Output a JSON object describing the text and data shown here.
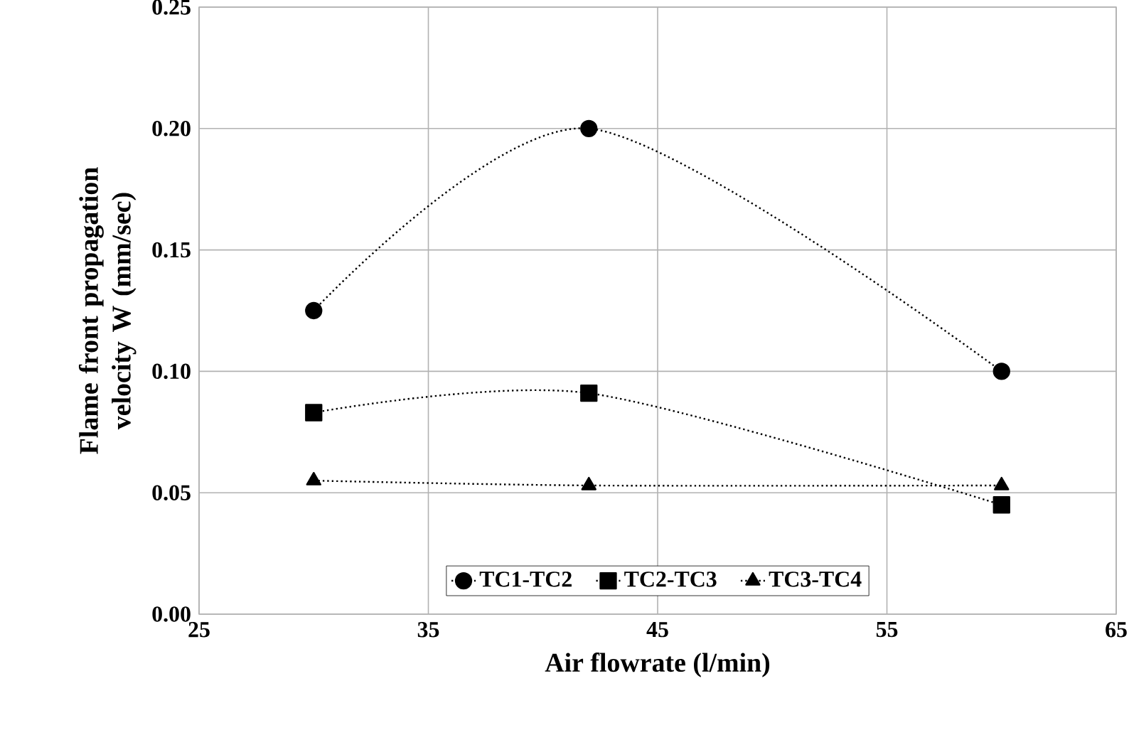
{
  "chart_data": {
    "type": "line",
    "xlabel": "Air flowrate (l/min)",
    "ylabel": "Flame front propagation velocity W (mm/sec)",
    "xlim": [
      25,
      65
    ],
    "xticks": [
      25,
      35,
      45,
      55,
      65
    ],
    "ylim": [
      0,
      0.25
    ],
    "yticks": [
      {
        "value": 0,
        "label": "0.00"
      },
      {
        "value": 0.05,
        "label": "0.05"
      },
      {
        "value": 0.1,
        "label": "0.10"
      },
      {
        "value": 0.15,
        "label": "0.15"
      },
      {
        "value": 0.2,
        "label": "0.20"
      },
      {
        "value": 0.25,
        "label": "0.25"
      }
    ],
    "grid": true,
    "legend": "bottom",
    "line_style": "dotted",
    "series": [
      {
        "name": "TC1-TC2",
        "color": "#000000",
        "marker": "circle",
        "x": [
          30,
          42,
          60
        ],
        "values": [
          0.125,
          0.2,
          0.1
        ]
      },
      {
        "name": "TC2-TC3",
        "color": "#000000",
        "marker": "square",
        "x": [
          30,
          42,
          60
        ],
        "values": [
          0.083,
          0.091,
          0.045
        ]
      },
      {
        "name": "TC3-TC4",
        "color": "#000000",
        "marker": "triangle",
        "x": [
          30,
          42,
          60
        ],
        "values": [
          0.055,
          0.053,
          0.053
        ]
      }
    ]
  }
}
